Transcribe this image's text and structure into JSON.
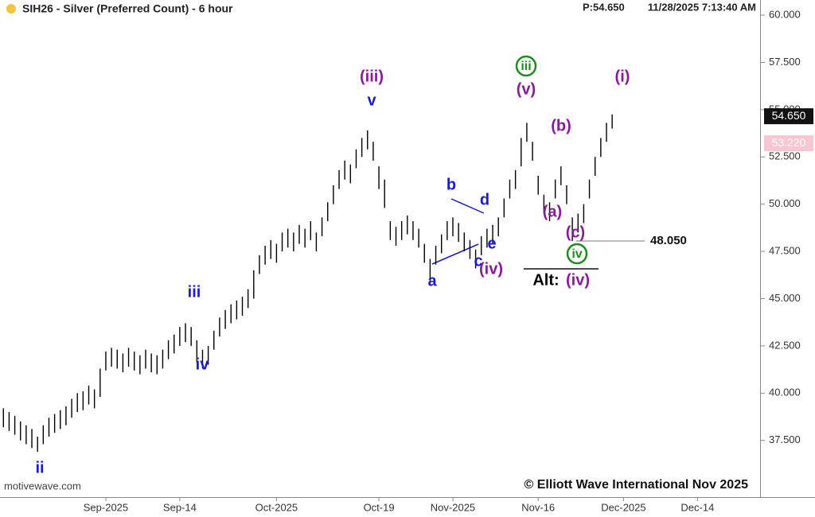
{
  "chart_data": {
    "type": "ohlc",
    "title": "SIH26 - Silver (Preferred Count) - 6 hour",
    "price_header": "P:54.650",
    "timestamp": "11/28/2025 7:13:40 AM",
    "watermark": "motivewave.com",
    "copyright": "© Elliott Wave International Nov 2025",
    "color": "#000000",
    "x": [
      -18,
      -17,
      -16,
      -15,
      -14,
      -13,
      -12,
      -11,
      -10,
      -9,
      -8,
      -7,
      -6,
      -5,
      -4,
      -3,
      -2,
      -1,
      0,
      1,
      2,
      3,
      4,
      5,
      6,
      7,
      8,
      9,
      10,
      11,
      12,
      13,
      14,
      15,
      16,
      17,
      18,
      19,
      20,
      21,
      22,
      23,
      24,
      25,
      26,
      27,
      28,
      29,
      30,
      31,
      32,
      33,
      34,
      35,
      36,
      37,
      38,
      39,
      40,
      41,
      42,
      43,
      44,
      45,
      46,
      47,
      48,
      49,
      50,
      51,
      52,
      53,
      54,
      55,
      56,
      57,
      58,
      59,
      60,
      61,
      62,
      63,
      64,
      65,
      66,
      67,
      68,
      69,
      70,
      71,
      72,
      73,
      74,
      75,
      76,
      77,
      78,
      79,
      80,
      81,
      82,
      83,
      84,
      85,
      86,
      87,
      88,
      89
    ],
    "high": [
      39.2,
      39.0,
      38.8,
      38.5,
      38.3,
      38.1,
      37.7,
      38.3,
      38.7,
      38.9,
      39.1,
      39.3,
      39.7,
      40.0,
      40.1,
      40.4,
      40.2,
      41.3,
      42.2,
      42.4,
      42.3,
      42.1,
      42.4,
      42.2,
      42.0,
      42.3,
      42.1,
      42.0,
      42.3,
      42.8,
      43.1,
      43.5,
      43.7,
      43.5,
      42.8,
      42.3,
      42.5,
      43.3,
      44.0,
      44.4,
      44.7,
      44.9,
      45.1,
      45.5,
      46.5,
      47.3,
      47.8,
      48.1,
      47.9,
      48.5,
      48.7,
      48.5,
      48.9,
      48.7,
      49.1,
      48.5,
      49.3,
      50.1,
      51.0,
      51.8,
      52.3,
      52.1,
      52.9,
      53.5,
      53.9,
      53.3,
      52.0,
      51.3,
      49.1,
      48.8,
      49.1,
      49.4,
      49.1,
      48.7,
      47.9,
      47.1,
      47.8,
      48.4,
      49.1,
      49.3,
      49.0,
      48.5,
      48.1,
      47.6,
      48.3,
      48.7,
      48.9,
      49.3,
      50.3,
      51.3,
      51.8,
      53.5,
      54.3,
      53.3,
      51.5,
      50.5,
      50.1,
      51.3,
      52.0,
      51.0,
      49.3,
      49.5,
      50.0,
      51.3,
      52.5,
      53.5,
      54.3,
      54.75
    ],
    "low": [
      38.2,
      38.0,
      37.8,
      37.5,
      37.3,
      37.1,
      36.9,
      37.3,
      37.7,
      37.9,
      38.1,
      38.3,
      38.7,
      39.0,
      39.1,
      39.4,
      39.2,
      39.8,
      41.2,
      41.4,
      41.3,
      41.1,
      41.4,
      41.2,
      41.0,
      41.3,
      41.1,
      41.0,
      41.3,
      41.8,
      42.1,
      42.5,
      42.7,
      42.5,
      41.6,
      41.3,
      41.5,
      42.3,
      43.0,
      43.4,
      43.7,
      43.9,
      44.1,
      44.5,
      45.0,
      46.3,
      46.8,
      47.1,
      46.9,
      47.5,
      47.7,
      47.5,
      47.9,
      47.7,
      48.1,
      47.5,
      48.3,
      49.1,
      50.0,
      50.8,
      51.3,
      51.1,
      51.9,
      52.5,
      52.9,
      52.3,
      50.8,
      49.8,
      48.1,
      47.8,
      48.1,
      48.4,
      48.1,
      47.7,
      46.9,
      45.9,
      46.8,
      47.4,
      48.1,
      48.3,
      48.0,
      47.5,
      47.1,
      46.6,
      47.3,
      47.7,
      47.9,
      48.3,
      49.3,
      50.3,
      50.8,
      52.0,
      53.3,
      52.3,
      50.5,
      49.5,
      49.1,
      50.3,
      51.0,
      50.0,
      48.05,
      48.5,
      49.0,
      50.3,
      51.5,
      52.5,
      53.3,
      54.0
    ],
    "xlim": [
      -18.6,
      115
    ],
    "xticks": [
      {
        "value": 0,
        "label": "Sep-2025"
      },
      {
        "value": 13,
        "label": "Sep-14"
      },
      {
        "value": 30,
        "label": "Oct-2025"
      },
      {
        "value": 48,
        "label": "Oct-19"
      },
      {
        "value": 61,
        "label": "Nov-2025"
      },
      {
        "value": 76,
        "label": "Nov-16"
      },
      {
        "value": 91,
        "label": "Dec-2025"
      },
      {
        "value": 104,
        "label": "Dec-14"
      }
    ],
    "ylim": [
      34.5,
      60.8
    ],
    "yticks": [
      {
        "value": 37.5,
        "label": "37.500"
      },
      {
        "value": 40,
        "label": "40.000"
      },
      {
        "value": 42.5,
        "label": "42.500"
      },
      {
        "value": 45,
        "label": "45.000"
      },
      {
        "value": 47.5,
        "label": "47.500"
      },
      {
        "value": 50,
        "label": "50.000"
      },
      {
        "value": 52.5,
        "label": "52.500"
      },
      {
        "value": 55,
        "label": "55.000"
      },
      {
        "value": 57.5,
        "label": "57.500"
      },
      {
        "value": 60,
        "label": "60.000"
      }
    ],
    "last_price": {
      "value": 54.65,
      "label": "54.650"
    },
    "ref_price": {
      "value": 53.22,
      "label": "53.220"
    },
    "level": {
      "value": 48.05,
      "label": "48.050"
    },
    "annotations": [
      {
        "text": "ii",
        "color": "#1a1adc"
      },
      {
        "text": "iii",
        "color": "#1a1adc"
      },
      {
        "text": "iv",
        "color": "#1a1adc"
      },
      {
        "text": "(iii)",
        "color": "#8b1a9b"
      },
      {
        "text": "v",
        "color": "#1a1adc"
      },
      {
        "text": "a",
        "color": "#1a1adc"
      },
      {
        "text": "b",
        "color": "#1a1adc"
      },
      {
        "text": "c",
        "color": "#1a1adc"
      },
      {
        "text": "d",
        "color": "#1a1adc"
      },
      {
        "text": "e",
        "color": "#1a1adc"
      },
      {
        "text": "(iv)",
        "color": "#8b1a9b"
      },
      {
        "text": "iii",
        "color": "#1e8c1e",
        "circled": true
      },
      {
        "text": "(v)",
        "color": "#8b1a9b"
      },
      {
        "text": "(b)",
        "color": "#8b1a9b"
      },
      {
        "text": "(a)",
        "color": "#8b1a9b"
      },
      {
        "text": "(c)",
        "color": "#8b1a9b"
      },
      {
        "text": "iv",
        "color": "#1e8c1e",
        "circled": true
      },
      {
        "text": "Alt:",
        "color": "#000000"
      },
      {
        "text": "(iv)",
        "color": "#8b1a9b"
      },
      {
        "text": "(i)",
        "color": "#8b1a9b"
      }
    ]
  }
}
